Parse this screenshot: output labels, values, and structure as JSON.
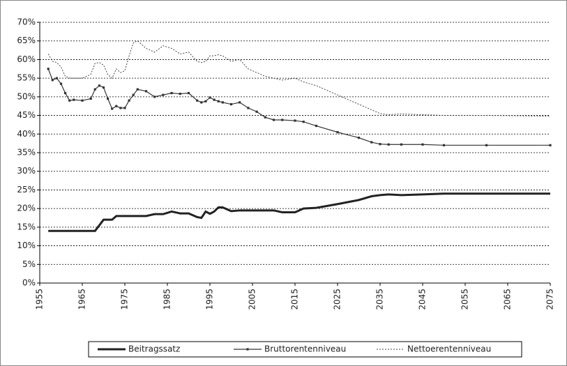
{
  "chart_data": {
    "type": "line",
    "x": [
      1957,
      1958,
      1959,
      1960,
      1961,
      1962,
      1963,
      1965,
      1967,
      1968,
      1969,
      1970,
      1971,
      1972,
      1973,
      1974,
      1975,
      1976,
      1977,
      1978,
      1980,
      1982,
      1984,
      1986,
      1988,
      1990,
      1992,
      1993,
      1994,
      1995,
      1996,
      1997,
      1998,
      2000,
      2002,
      2004,
      2006,
      2008,
      2010,
      2012,
      2015,
      2017,
      2020,
      2025,
      2030,
      2033,
      2035,
      2037,
      2040,
      2045,
      2050,
      2060,
      2075
    ],
    "series": [
      {
        "name": "Beitragssatz",
        "color": "#222222",
        "style": "thick",
        "values": [
          14,
          14,
          14,
          14,
          14,
          14,
          14,
          14,
          14,
          14,
          15.5,
          17,
          17,
          17,
          18,
          18,
          18,
          18,
          18,
          18,
          18,
          18.5,
          18.5,
          19.2,
          18.7,
          18.7,
          17.7,
          17.5,
          19.2,
          18.6,
          19.2,
          20.3,
          20.3,
          19.3,
          19.5,
          19.5,
          19.5,
          19.5,
          19.5,
          19,
          19,
          20,
          20.2,
          21.2,
          22.3,
          23.3,
          23.6,
          23.8,
          23.6,
          23.8,
          24,
          24,
          24
        ]
      },
      {
        "name": "Bruttorentenniveau",
        "color": "#333333",
        "style": "marker",
        "values": [
          57.5,
          54.5,
          55,
          53.5,
          51,
          49,
          49.2,
          49,
          49.5,
          52,
          53,
          52.5,
          49.5,
          46.8,
          47.5,
          47,
          47,
          49,
          50.5,
          52,
          51.5,
          50,
          50.5,
          51,
          50.8,
          51,
          49,
          48.5,
          48.8,
          49.8,
          49.2,
          48.8,
          48.5,
          48,
          48.5,
          47,
          46,
          44.5,
          43.8,
          43.8,
          43.6,
          43.3,
          42.2,
          40.5,
          39,
          37.8,
          37.3,
          37.2,
          37.2,
          37.2,
          37,
          37,
          37
        ]
      },
      {
        "name": "Nettoerentenniveau",
        "color": "#444444",
        "style": "dashed",
        "values": [
          61.5,
          59.5,
          59.2,
          58,
          55.5,
          55,
          55,
          55,
          56,
          59,
          59.2,
          58.5,
          56,
          55,
          57.5,
          56.5,
          57,
          61,
          64.5,
          65,
          63,
          62,
          63.7,
          63,
          61.5,
          62,
          59.5,
          59.2,
          59.5,
          61,
          61,
          61.3,
          61,
          59.5,
          60,
          57.5,
          56.5,
          55.5,
          55,
          54.5,
          55,
          54,
          53,
          50.5,
          48,
          46.5,
          45.5,
          45.2,
          45.4,
          45.2,
          45,
          45,
          44.8
        ]
      }
    ],
    "xlim": [
      1955,
      2075
    ],
    "xticks": [
      1955,
      1965,
      1975,
      1985,
      1995,
      2005,
      2015,
      2025,
      2035,
      2045,
      2055,
      2065,
      2075
    ],
    "ylim": [
      0,
      70
    ],
    "yticks": [
      {
        "value": 0,
        "label": "0%"
      },
      {
        "value": 5,
        "label": "5%"
      },
      {
        "value": 10,
        "label": "10%"
      },
      {
        "value": 15,
        "label": "15%"
      },
      {
        "value": 20,
        "label": "20%"
      },
      {
        "value": 25,
        "label": "25%"
      },
      {
        "value": 30,
        "label": "30%"
      },
      {
        "value": 35,
        "label": "35%"
      },
      {
        "value": 40,
        "label": "40%"
      },
      {
        "value": 45,
        "label": "45%"
      },
      {
        "value": 50,
        "label": "50%"
      },
      {
        "value": 55,
        "label": "55%"
      },
      {
        "value": 60,
        "label": "60%"
      },
      {
        "value": 65,
        "label": "65%"
      },
      {
        "value": 70,
        "label": "70%"
      }
    ],
    "grid": true,
    "legend": "bottom"
  }
}
